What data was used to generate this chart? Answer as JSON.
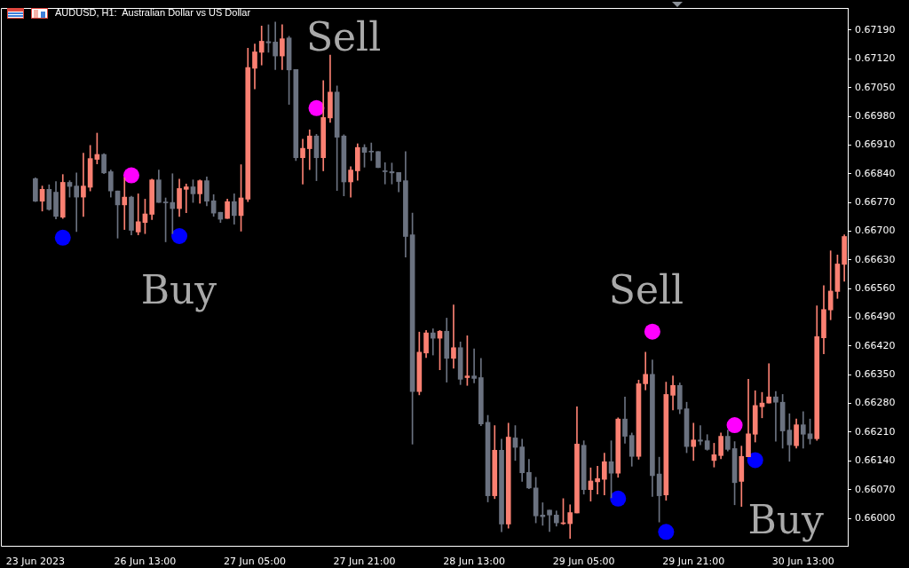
{
  "chart_data": {
    "type": "candlestick",
    "title": "AUDUSD, H1:  Australian Dollar vs US Dollar",
    "categories": [
      "23 Jun 2023",
      null,
      null,
      null,
      null,
      null,
      null,
      null,
      null,
      null,
      null,
      null,
      null,
      null,
      null,
      null,
      "26 Jun 13:00",
      null,
      null,
      null,
      null,
      null,
      null,
      null,
      null,
      null,
      null,
      null,
      null,
      null,
      null,
      null,
      "27 Jun 05:00",
      null,
      null,
      null,
      null,
      null,
      null,
      null,
      null,
      null,
      null,
      null,
      null,
      null,
      null,
      null,
      "27 Jun 21:00",
      null,
      null,
      null,
      null,
      null,
      null,
      null,
      null,
      null,
      null,
      null,
      null,
      null,
      null,
      null,
      "28 Jun 13:00",
      null,
      null,
      null,
      null,
      null,
      null,
      null,
      null,
      null,
      null,
      null,
      null,
      null,
      null,
      null,
      "29 Jun 05:00",
      null,
      null,
      null,
      null,
      null,
      null,
      null,
      null,
      null,
      null,
      null,
      null,
      null,
      null,
      null,
      "29 Jun 21:00",
      null,
      null,
      null,
      null,
      null,
      null,
      null,
      null,
      null,
      null,
      null,
      null,
      null,
      null,
      null,
      "30 Jun 13:00",
      null,
      null,
      null,
      null,
      null,
      null
    ],
    "ohlc": [
      [
        0.66828,
        0.6683,
        0.66772,
        0.66773
      ],
      [
        0.66773,
        0.6681,
        0.66749,
        0.66802
      ],
      [
        0.66802,
        0.66813,
        0.66751,
        0.66753
      ],
      [
        0.66795,
        0.66821,
        0.6673,
        0.66736
      ],
      [
        0.66734,
        0.66838,
        0.66731,
        0.66819
      ],
      [
        0.66819,
        0.66823,
        0.66783,
        0.66809
      ],
      [
        0.6681,
        0.66842,
        0.66699,
        0.66783
      ],
      [
        0.66783,
        0.6689,
        0.66736,
        0.6681
      ],
      [
        0.66807,
        0.66909,
        0.66798,
        0.66877
      ],
      [
        0.66875,
        0.66939,
        0.66864,
        0.66887
      ],
      [
        0.66887,
        0.66889,
        0.6684,
        0.66842
      ],
      [
        0.66845,
        0.66849,
        0.66783,
        0.66798
      ],
      [
        0.66798,
        0.66798,
        0.66683,
        0.66764
      ],
      [
        0.66764,
        0.6683,
        0.66704,
        0.66783
      ],
      [
        0.66783,
        0.66785,
        0.66691,
        0.66702
      ],
      [
        0.66698,
        0.66791,
        0.66691,
        0.66723
      ],
      [
        0.66721,
        0.66778,
        0.66694,
        0.66742
      ],
      [
        0.66741,
        0.66827,
        0.66728,
        0.66825
      ],
      [
        0.66825,
        0.66849,
        0.6677,
        0.6677
      ],
      [
        0.66771,
        0.66781,
        0.66674,
        0.66769
      ],
      [
        0.6677,
        0.6684,
        0.66694,
        0.66755
      ],
      [
        0.66755,
        0.66827,
        0.66736,
        0.66804
      ],
      [
        0.66802,
        0.66815,
        0.66745,
        0.66808
      ],
      [
        0.66808,
        0.66825,
        0.6677,
        0.66791
      ],
      [
        0.66791,
        0.66825,
        0.66768,
        0.66823
      ],
      [
        0.66823,
        0.66832,
        0.66762,
        0.66773
      ],
      [
        0.66774,
        0.66789,
        0.66736,
        0.66744
      ],
      [
        0.66746,
        0.66746,
        0.66721,
        0.66729
      ],
      [
        0.66731,
        0.66778,
        0.66731,
        0.66772
      ],
      [
        0.66772,
        0.66791,
        0.66717,
        0.66738
      ],
      [
        0.66738,
        0.66862,
        0.667,
        0.66781
      ],
      [
        0.66778,
        0.67146,
        0.66772,
        0.67099
      ],
      [
        0.67097,
        0.67156,
        0.67047,
        0.67137
      ],
      [
        0.67136,
        0.672,
        0.67105,
        0.67163
      ],
      [
        0.67162,
        0.67203,
        0.67136,
        0.67159
      ],
      [
        0.67161,
        0.6721,
        0.67094,
        0.67127
      ],
      [
        0.67127,
        0.67203,
        0.67094,
        0.67169
      ],
      [
        0.67171,
        0.67175,
        0.67009,
        0.67093
      ],
      [
        0.67094,
        0.67094,
        0.66872,
        0.66879
      ],
      [
        0.66879,
        0.66924,
        0.66815,
        0.66902
      ],
      [
        0.66901,
        0.66947,
        0.6685,
        0.66932
      ],
      [
        0.66932,
        0.66936,
        0.66823,
        0.66879
      ],
      [
        0.66879,
        0.67067,
        0.66847,
        0.66977
      ],
      [
        0.66976,
        0.67129,
        0.66965,
        0.67039
      ],
      [
        0.67039,
        0.67054,
        0.66799,
        0.66929
      ],
      [
        0.66932,
        0.66935,
        0.66786,
        0.6682
      ],
      [
        0.6682,
        0.66857,
        0.66783,
        0.66849
      ],
      [
        0.66847,
        0.66913,
        0.66824,
        0.66904
      ],
      [
        0.66904,
        0.66911,
        0.66856,
        0.66892
      ],
      [
        0.66895,
        0.66915,
        0.66872,
        0.66893
      ],
      [
        0.66894,
        0.66894,
        0.66855,
        0.66855
      ],
      [
        0.66846,
        0.66867,
        0.66815,
        0.66845
      ],
      [
        0.66845,
        0.66866,
        0.66815,
        0.66842
      ],
      [
        0.66843,
        0.66843,
        0.66796,
        0.66821
      ],
      [
        0.66823,
        0.66894,
        0.66637,
        0.66687
      ],
      [
        0.66691,
        0.66744,
        0.66181,
        0.66309
      ],
      [
        0.66309,
        0.66454,
        0.66301,
        0.66405
      ],
      [
        0.66403,
        0.66458,
        0.66392,
        0.66452
      ],
      [
        0.66452,
        0.66462,
        0.66398,
        0.66439
      ],
      [
        0.66439,
        0.66458,
        0.66362,
        0.66456
      ],
      [
        0.66456,
        0.66488,
        0.66332,
        0.6639
      ],
      [
        0.6639,
        0.6652,
        0.66366,
        0.66416
      ],
      [
        0.66416,
        0.6643,
        0.66326,
        0.66339
      ],
      [
        0.66343,
        0.66445,
        0.66324,
        0.66347
      ],
      [
        0.66347,
        0.66413,
        0.6633,
        0.66341
      ],
      [
        0.66343,
        0.6639,
        0.66226,
        0.6623
      ],
      [
        0.66234,
        0.66251,
        0.6604,
        0.66055
      ],
      [
        0.66055,
        0.66226,
        0.66048,
        0.66166
      ],
      [
        0.66166,
        0.66193,
        0.65967,
        0.65986
      ],
      [
        0.65986,
        0.66232,
        0.65976,
        0.66198
      ],
      [
        0.66196,
        0.66226,
        0.66141,
        0.66173
      ],
      [
        0.66174,
        0.66193,
        0.6609,
        0.66111
      ],
      [
        0.66112,
        0.66144,
        0.66072,
        0.66074
      ],
      [
        0.66074,
        0.661,
        0.65989,
        0.66006
      ],
      [
        0.66008,
        0.66038,
        0.65983,
        0.66004
      ],
      [
        0.6602,
        0.6602,
        0.65968,
        0.66008
      ],
      [
        0.66008,
        0.66018,
        0.65981,
        0.65989
      ],
      [
        0.65987,
        0.66048,
        0.65985,
        0.65989
      ],
      [
        0.65987,
        0.66033,
        0.65951,
        0.66014
      ],
      [
        0.66013,
        0.66272,
        0.66013,
        0.66181
      ],
      [
        0.66178,
        0.66189,
        0.66059,
        0.6607
      ],
      [
        0.6607,
        0.66123,
        0.66042,
        0.66091
      ],
      [
        0.66089,
        0.66127,
        0.66059,
        0.66097
      ],
      [
        0.66095,
        0.66159,
        0.66057,
        0.66138
      ],
      [
        0.66138,
        0.66189,
        0.6605,
        0.6611
      ],
      [
        0.6611,
        0.66245,
        0.661,
        0.66242
      ],
      [
        0.66242,
        0.66296,
        0.66183,
        0.662
      ],
      [
        0.66202,
        0.66208,
        0.66127,
        0.66151
      ],
      [
        0.66151,
        0.66337,
        0.66144,
        0.66328
      ],
      [
        0.66328,
        0.66405,
        0.66313,
        0.66351
      ],
      [
        0.66351,
        0.66386,
        0.66053,
        0.66104
      ],
      [
        0.66108,
        0.66149,
        0.65991,
        0.66055
      ],
      [
        0.66057,
        0.66332,
        0.66044,
        0.66302
      ],
      [
        0.663,
        0.66347,
        0.66264,
        0.66324
      ],
      [
        0.66324,
        0.6633,
        0.66255,
        0.66266
      ],
      [
        0.66267,
        0.66283,
        0.6616,
        0.66175
      ],
      [
        0.66175,
        0.66232,
        0.66141,
        0.66191
      ],
      [
        0.66191,
        0.66226,
        0.66179,
        0.66188
      ],
      [
        0.66189,
        0.66204,
        0.66166,
        0.66168
      ],
      [
        0.66141,
        0.66183,
        0.66125,
        0.66155
      ],
      [
        0.66153,
        0.66208,
        0.66145,
        0.662
      ],
      [
        0.662,
        0.66215,
        0.66164,
        0.66168
      ],
      [
        0.6617,
        0.66187,
        0.66033,
        0.66087
      ],
      [
        0.6609,
        0.66176,
        0.66029,
        0.66151
      ],
      [
        0.6615,
        0.66339,
        0.6615,
        0.66206
      ],
      [
        0.66205,
        0.66311,
        0.66186,
        0.66275
      ],
      [
        0.66272,
        0.66307,
        0.66245,
        0.66281
      ],
      [
        0.66281,
        0.66377,
        0.66281,
        0.66296
      ],
      [
        0.66296,
        0.66309,
        0.66188,
        0.66283
      ],
      [
        0.66283,
        0.66302,
        0.66171,
        0.66213
      ],
      [
        0.66215,
        0.66255,
        0.66139,
        0.66179
      ],
      [
        0.66177,
        0.66242,
        0.66171,
        0.66228
      ],
      [
        0.66228,
        0.6626,
        0.66171,
        0.66205
      ],
      [
        0.66206,
        0.66242,
        0.66181,
        0.66194
      ],
      [
        0.66194,
        0.66518,
        0.6619,
        0.66443
      ],
      [
        0.6644,
        0.66567,
        0.66401,
        0.66509
      ],
      [
        0.66508,
        0.66652,
        0.66484,
        0.66554
      ],
      [
        0.66553,
        0.66642,
        0.66536,
        0.6662
      ],
      [
        0.66619,
        0.66691,
        0.66578,
        0.66687
      ]
    ],
    "colors": [
      "#6b7280",
      "#fa8072",
      "#6b7280",
      "#6b7280",
      "#fa8072",
      "#6b7280",
      "#6b7280",
      "#fa8072",
      "#fa8072",
      "#fa8072",
      "#6b7280",
      "#6b7280",
      "#6b7280",
      "#fa8072",
      "#6b7280",
      "#fa8072",
      "#fa8072",
      "#fa8072",
      "#6b7280",
      "#6b7280",
      "#6b7280",
      "#fa8072",
      "#fa8072",
      "#6b7280",
      "#fa8072",
      "#6b7280",
      "#6b7280",
      "#6b7280",
      "#fa8072",
      "#6b7280",
      "#fa8072",
      "#fa8072",
      "#fa8072",
      "#fa8072",
      "#6b7280",
      "#6b7280",
      "#fa8072",
      "#6b7280",
      "#6b7280",
      "#fa8072",
      "#fa8072",
      "#6b7280",
      "#fa8072",
      "#fa8072",
      "#6b7280",
      "#6b7280",
      "#fa8072",
      "#fa8072",
      "#6b7280",
      "#6b7280",
      "#6b7280",
      "#6b7280",
      "#6b7280",
      "#6b7280",
      "#6b7280",
      "#6b7280",
      "#fa8072",
      "#fa8072",
      "#6b7280",
      "#fa8072",
      "#6b7280",
      "#fa8072",
      "#6b7280",
      "#fa8072",
      "#6b7280",
      "#6b7280",
      "#6b7280",
      "#fa8072",
      "#6b7280",
      "#fa8072",
      "#6b7280",
      "#6b7280",
      "#6b7280",
      "#6b7280",
      "#6b7280",
      "#6b7280",
      "#6b7280",
      "#fa8072",
      "#fa8072",
      "#fa8072",
      "#6b7280",
      "#fa8072",
      "#fa8072",
      "#fa8072",
      "#6b7280",
      "#fa8072",
      "#6b7280",
      "#6b7280",
      "#fa8072",
      "#fa8072",
      "#6b7280",
      "#6b7280",
      "#fa8072",
      "#fa8072",
      "#6b7280",
      "#6b7280",
      "#fa8072",
      "#6b7280",
      "#6b7280",
      "#fa8072",
      "#fa8072",
      "#6b7280",
      "#6b7280",
      "#fa8072",
      "#fa8072",
      "#fa8072",
      "#fa8072",
      "#fa8072",
      "#6b7280",
      "#6b7280",
      "#6b7280",
      "#fa8072",
      "#6b7280",
      "#6b7280",
      "#fa8072",
      "#fa8072",
      "#fa8072",
      "#fa8072",
      "#fa8072"
    ],
    "series": [
      {
        "type": "scatter",
        "color": "#ff00ff",
        "values": [
          null,
          null,
          null,
          null,
          null,
          null,
          null,
          null,
          null,
          null,
          null,
          null,
          null,
          null,
          0.66836,
          null,
          null,
          null,
          null,
          null,
          null,
          null,
          null,
          null,
          null,
          null,
          null,
          null,
          null,
          null,
          null,
          null,
          null,
          null,
          null,
          null,
          null,
          null,
          null,
          null,
          null,
          0.67,
          null,
          null,
          null,
          null,
          null,
          null,
          null,
          null,
          null,
          null,
          null,
          null,
          null,
          null,
          null,
          null,
          null,
          null,
          null,
          null,
          null,
          null,
          null,
          null,
          null,
          null,
          null,
          null,
          null,
          null,
          null,
          null,
          null,
          null,
          null,
          null,
          null,
          null,
          null,
          null,
          null,
          null,
          null,
          null,
          null,
          null,
          null,
          null,
          0.66455,
          null,
          null,
          null,
          null,
          null,
          null,
          null,
          null,
          null,
          null,
          null,
          0.66227,
          null,
          null,
          null,
          null,
          null,
          null,
          null,
          null,
          null,
          null,
          null,
          null,
          null,
          null,
          null,
          null
        ]
      },
      {
        "type": "scatter",
        "color": "#0000ff",
        "values": [
          null,
          null,
          null,
          null,
          0.66684,
          null,
          null,
          null,
          null,
          null,
          null,
          null,
          null,
          null,
          null,
          null,
          null,
          null,
          null,
          null,
          null,
          0.66688,
          null,
          null,
          null,
          null,
          null,
          null,
          null,
          null,
          null,
          null,
          null,
          null,
          null,
          null,
          null,
          null,
          null,
          null,
          null,
          null,
          null,
          null,
          null,
          null,
          null,
          null,
          null,
          null,
          null,
          null,
          null,
          null,
          null,
          null,
          null,
          null,
          null,
          null,
          null,
          null,
          null,
          null,
          null,
          null,
          null,
          null,
          null,
          null,
          null,
          null,
          null,
          null,
          null,
          null,
          null,
          null,
          null,
          null,
          null,
          null,
          null,
          null,
          null,
          0.66048,
          null,
          null,
          null,
          null,
          null,
          null,
          0.65967,
          null,
          null,
          null,
          null,
          null,
          null,
          null,
          null,
          null,
          null,
          null,
          null,
          0.66142,
          null,
          null,
          null,
          null,
          null,
          null,
          null,
          null,
          null,
          null,
          null,
          null,
          null
        ]
      }
    ],
    "marker": "circle",
    "annotations": [
      "Sell",
      "Buy",
      "Sell",
      "Buy"
    ],
    "ylim": [
      0.65933,
      0.67244
    ],
    "yticks": [
      {
        "value": 0.66,
        "label": "0.66000"
      },
      {
        "value": 0.6607,
        "label": "0.66070"
      },
      {
        "value": 0.6614,
        "label": "0.66140"
      },
      {
        "value": 0.6621,
        "label": "0.66210"
      },
      {
        "value": 0.6628,
        "label": "0.66280"
      },
      {
        "value": 0.6635,
        "label": "0.66350"
      },
      {
        "value": 0.6642,
        "label": "0.66420"
      },
      {
        "value": 0.6649,
        "label": "0.66490"
      },
      {
        "value": 0.6656,
        "label": "0.66560"
      },
      {
        "value": 0.6663,
        "label": "0.66630"
      },
      {
        "value": 0.667,
        "label": "0.66700"
      },
      {
        "value": 0.6677,
        "label": "0.66770"
      },
      {
        "value": 0.6684,
        "label": "0.66840"
      },
      {
        "value": 0.6691,
        "label": "0.66910"
      },
      {
        "value": 0.6698,
        "label": "0.66980"
      },
      {
        "value": 0.6705,
        "label": "0.67050"
      },
      {
        "value": 0.6712,
        "label": "0.67120"
      },
      {
        "value": 0.6719,
        "label": "0.67190"
      }
    ]
  }
}
